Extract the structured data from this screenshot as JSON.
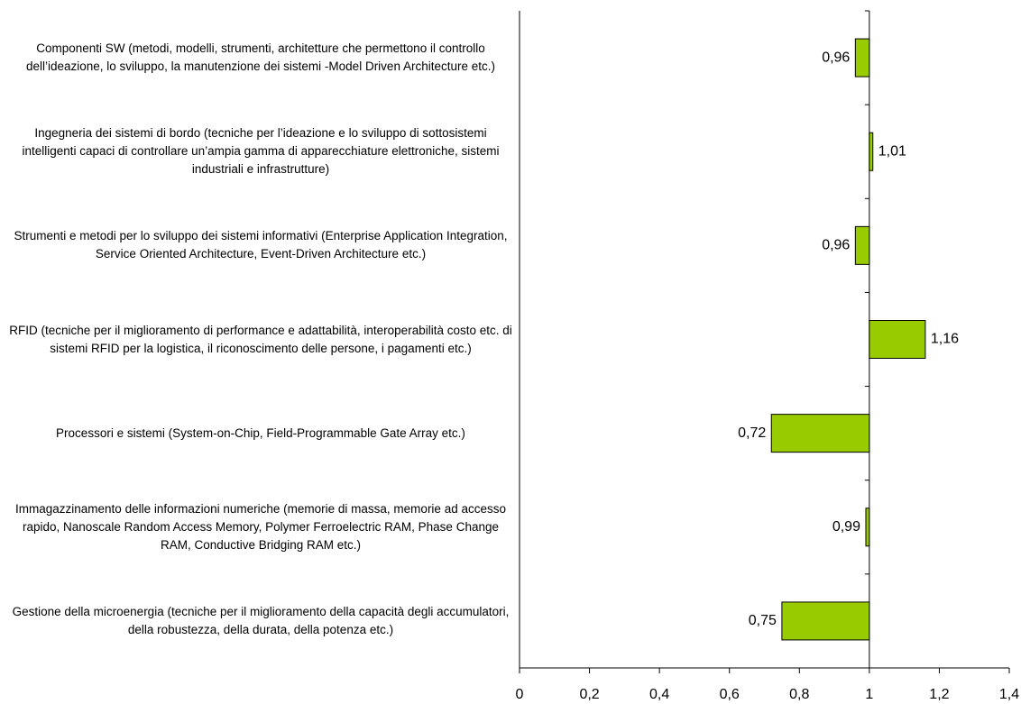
{
  "chart_data": {
    "type": "bar",
    "orientation": "horizontal",
    "categories": [
      "Componenti SW (metodi, modelli, strumenti, architetture che permettono il controllo dell’ideazione, lo sviluppo, la manutenzione dei sistemi -Model Driven Architecture etc.)",
      "Ingegneria dei sistemi di bordo (tecniche per l’ideazione e lo sviluppo di sottosistemi intelligenti capaci di controllare un’ampia gamma di apparecchiature elettroniche, sistemi industriali e infrastrutture)",
      "Strumenti e metodi per lo sviluppo dei sistemi informativi (Enterprise Application Integration, Service Oriented Architecture, Event-Driven Architecture etc.)",
      "RFID (tecniche per il miglioramento di performance e adattabilità, interoperabilità costo etc. di sistemi RFID per la logistica, il riconoscimento delle persone, i pagamenti etc.)",
      "Processori e sistemi (System-on-Chip, Field-Programmable Gate Array etc.)",
      "Immagazzinamento delle informazioni numeriche (memorie di massa, memorie ad accesso rapido, Nanoscale Random Access Memory, Polymer Ferroelectric RAM, Phase Change RAM, Conductive Bridging RAM etc.)",
      "Gestione della microenergia (tecniche per il miglioramento della capacità degli accumulatori, della robustezza, della durata, della potenza etc.)"
    ],
    "values": [
      0.96,
      1.01,
      0.96,
      1.16,
      0.72,
      0.99,
      0.75
    ],
    "value_labels": [
      "0,96",
      "1,01",
      "0,96",
      "1,16",
      "0,72",
      "0,99",
      "0,75"
    ],
    "color": "#99cc00",
    "baseline": 1,
    "xlim": [
      0,
      1.4
    ],
    "xticks": [
      0,
      {
        "value": 0.2,
        "label": "0,2"
      },
      {
        "value": 0.4,
        "label": "0,4"
      },
      {
        "value": 0.6,
        "label": "0,6"
      },
      {
        "value": 0.8,
        "label": "0,8"
      },
      1,
      {
        "value": 1.2,
        "label": "1,2"
      },
      {
        "value": 1.4,
        "label": "1,4"
      }
    ]
  }
}
